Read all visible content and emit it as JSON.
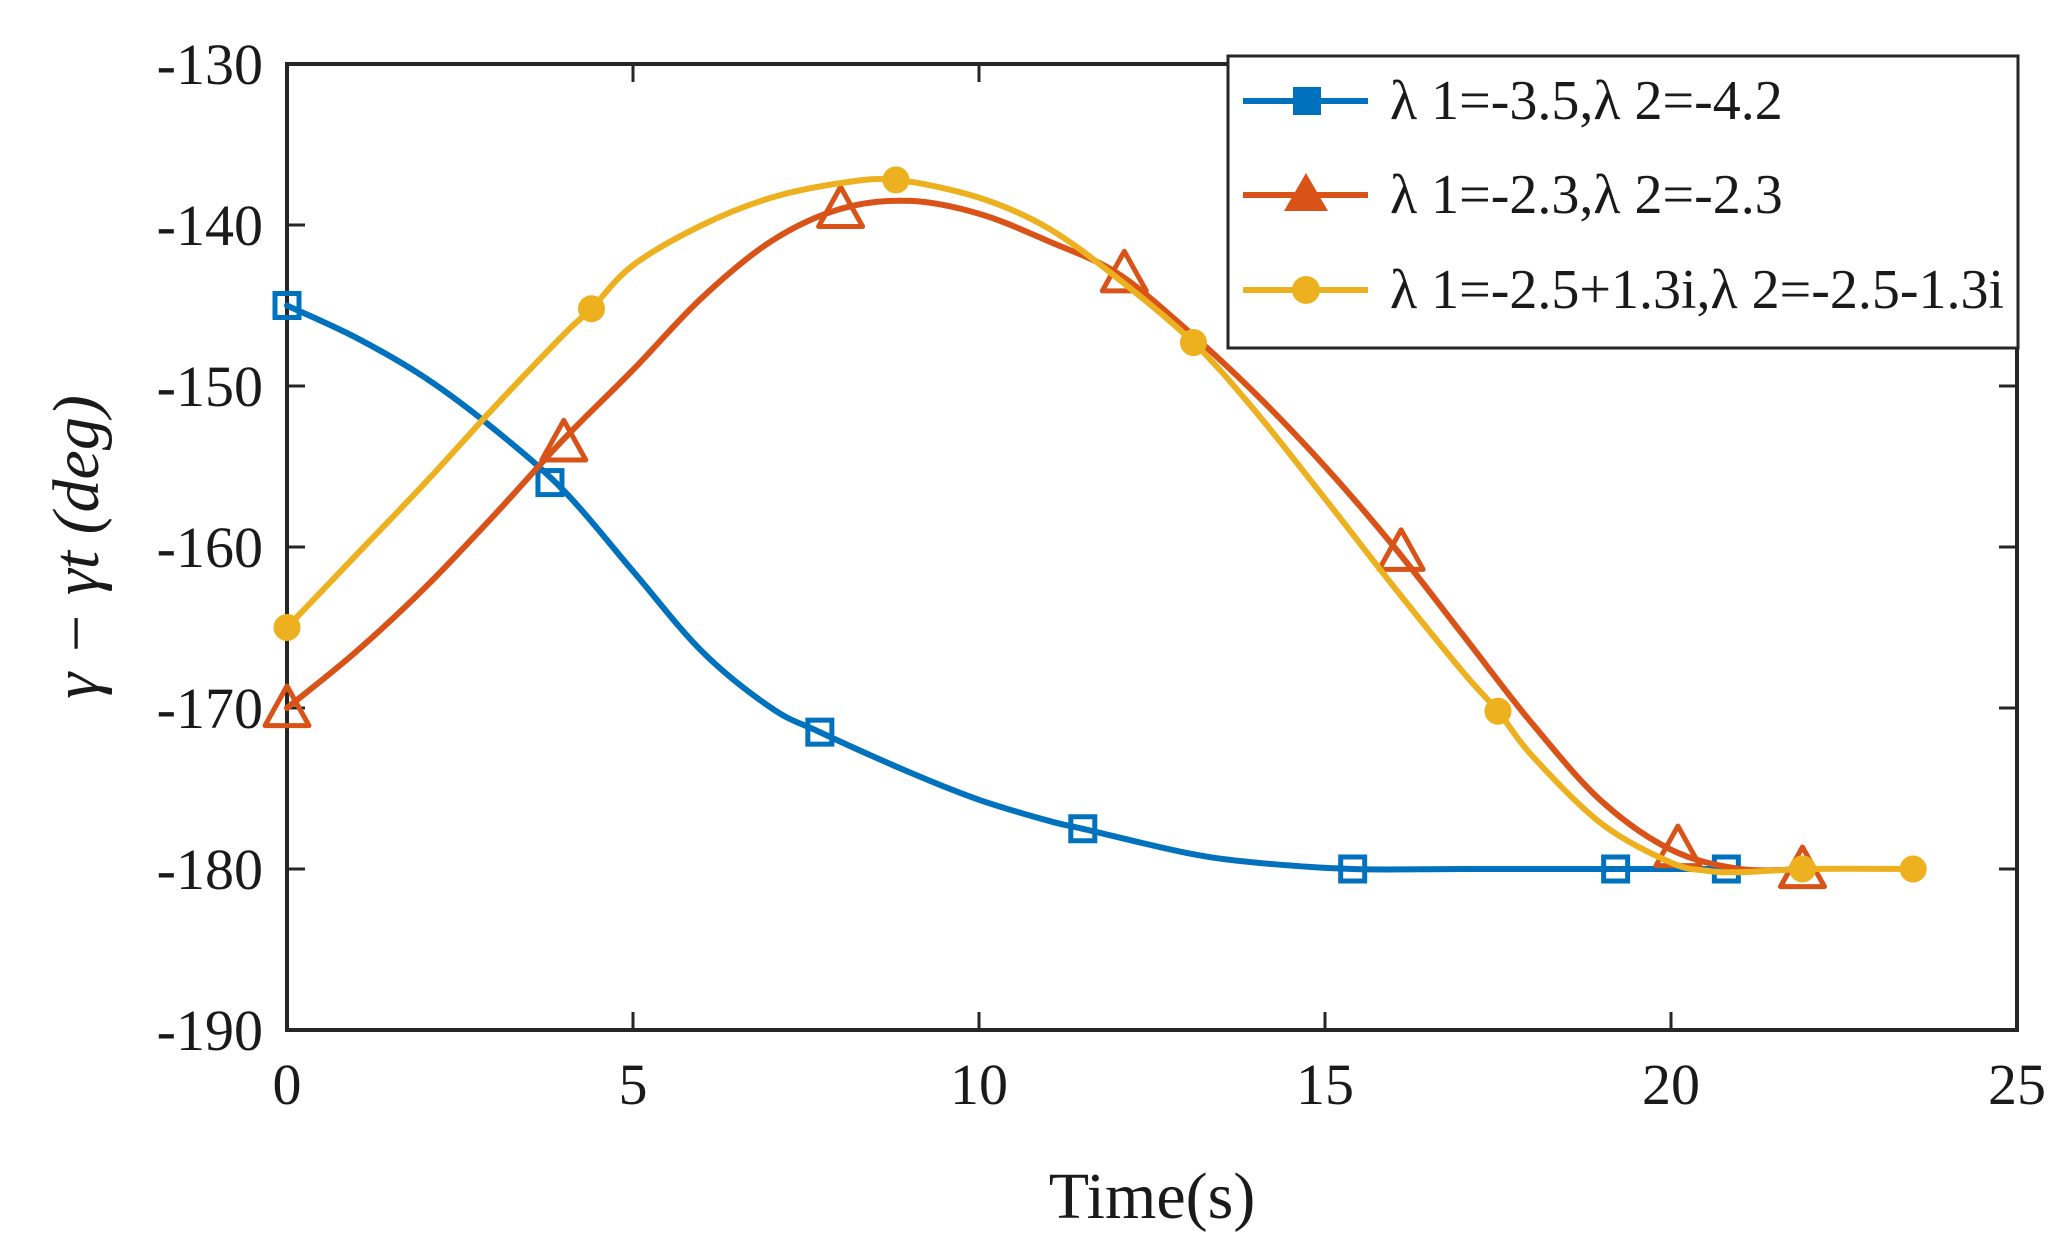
{
  "chart_data": {
    "type": "line",
    "title": "",
    "xlabel": "Time(s)",
    "ylabel": "γ − γt (deg)",
    "xlim": [
      0,
      25
    ],
    "ylim": [
      -190,
      -130
    ],
    "xticks": [
      0,
      5,
      10,
      15,
      20,
      25
    ],
    "yticks": [
      -130,
      -140,
      -150,
      -160,
      -170,
      -180,
      -190
    ],
    "xtick_labels": [
      "0",
      "5",
      "10",
      "15",
      "20",
      "25"
    ],
    "ytick_labels": [
      "-130",
      "-140",
      "-150",
      "-160",
      "-170",
      "-180",
      "-190"
    ],
    "grid": false,
    "legend_position": "top-right",
    "series": [
      {
        "name": "λ 1=-3.5,λ 2=-4.2",
        "color": "#0072BD",
        "marker": "square",
        "x": [
          0,
          1,
          2,
          3,
          4,
          5,
          6,
          7,
          7.7,
          9,
          10,
          11,
          11.5,
          13,
          14,
          15.4,
          17,
          19.2,
          20.8
        ],
        "y": [
          -145,
          -147,
          -149.5,
          -152.7,
          -156.5,
          -161.5,
          -166.5,
          -170,
          -171.5,
          -174,
          -175.7,
          -177,
          -177.5,
          -179,
          -179.6,
          -180,
          -180,
          -180,
          -180
        ],
        "marker_x": [
          0,
          3.8,
          7.7,
          11.5,
          15.4,
          19.2,
          20.8
        ],
        "marker_y": [
          -145,
          -156,
          -171.5,
          -177.5,
          -180,
          -180,
          -180
        ]
      },
      {
        "name": "λ 1=-2.3,λ 2=-2.3",
        "color": "#D95319",
        "marker": "triangle",
        "x": [
          0,
          1,
          2,
          3,
          4,
          5,
          6,
          7,
          8,
          9,
          10,
          11,
          12,
          13,
          14,
          15,
          16,
          17,
          18,
          19,
          20,
          21,
          21.9
        ],
        "y": [
          -170,
          -166.5,
          -162.5,
          -158,
          -153.3,
          -149,
          -144.5,
          -141,
          -139,
          -138.5,
          -139.3,
          -141,
          -143,
          -146.5,
          -150.5,
          -155,
          -160,
          -165.5,
          -171,
          -175.8,
          -178.8,
          -180,
          -180
        ],
        "marker_x": [
          0,
          4.0,
          8.0,
          12.1,
          16.1,
          20.1,
          21.9
        ],
        "marker_y": [
          -170,
          -153.5,
          -139,
          -143,
          -160.3,
          -178.7,
          -180
        ]
      },
      {
        "name": "λ 1=-2.5+1.3i,λ 2=-2.5-1.3i",
        "color": "#EDB120",
        "marker": "circle",
        "x": [
          0,
          1,
          2,
          3,
          4,
          4.4,
          5,
          6,
          7,
          8,
          8.8,
          10,
          11,
          12,
          13.1,
          14,
          15,
          16,
          17,
          17.5,
          18,
          19,
          20,
          20.5,
          21,
          22,
          23.5
        ],
        "y": [
          -165,
          -160.5,
          -156,
          -151.3,
          -146.8,
          -145.2,
          -142.5,
          -140,
          -138.3,
          -137.4,
          -137.2,
          -138.3,
          -140.2,
          -143.3,
          -147.3,
          -151.6,
          -157,
          -162.5,
          -167.8,
          -170.2,
          -173,
          -177.2,
          -179.6,
          -180.1,
          -180.2,
          -180,
          -180
        ],
        "marker_x": [
          0,
          4.4,
          8.8,
          13.1,
          17.5,
          21.9,
          23.5
        ],
        "marker_y": [
          -165,
          -145.2,
          -137.2,
          -147.3,
          -170.2,
          -180,
          -180
        ]
      }
    ]
  }
}
